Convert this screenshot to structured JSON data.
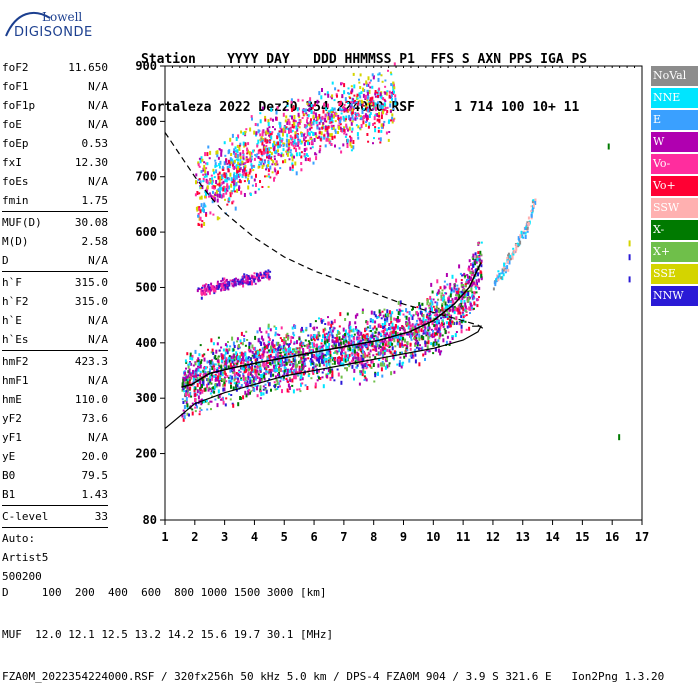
{
  "logo": {
    "line1": "Lowell",
    "line2": "DIGISONDE"
  },
  "header": {
    "line1": "Station    YYYY DAY   DDD HHMMSS P1  FFS S AXN PPS IGA PS",
    "line2": "Fortaleza 2022 Dez20 354 224000 RSF     1 714 100 10+ 11"
  },
  "params_groups": [
    [
      [
        "foF2",
        "11.650"
      ],
      [
        "foF1",
        "N/A"
      ],
      [
        "foF1p",
        "N/A"
      ],
      [
        "foE",
        "N/A"
      ],
      [
        "foEp",
        "0.53"
      ],
      [
        "fxI",
        "12.30"
      ],
      [
        "foEs",
        "N/A"
      ],
      [
        "fmin",
        "1.75"
      ]
    ],
    [
      [
        "MUF(D)",
        "30.08"
      ],
      [
        "M(D)",
        "2.58"
      ],
      [
        "D",
        "N/A"
      ]
    ],
    [
      [
        "h`F",
        "315.0"
      ],
      [
        "h`F2",
        "315.0"
      ],
      [
        "h`E",
        "N/A"
      ],
      [
        "h`Es",
        "N/A"
      ]
    ],
    [
      [
        "hmF2",
        "423.3"
      ],
      [
        "hmF1",
        "N/A"
      ],
      [
        "hmE",
        "110.0"
      ],
      [
        "yF2",
        "73.6"
      ],
      [
        "yF1",
        "N/A"
      ],
      [
        "yE",
        "20.0"
      ],
      [
        "B0",
        "79.5"
      ],
      [
        "B1",
        "1.43"
      ]
    ],
    [
      [
        "C-level",
        "33"
      ]
    ]
  ],
  "auto_block": [
    "Auto:",
    "Artist5",
    "500200"
  ],
  "legend": [
    {
      "label": "NoVal",
      "color": "#8c8c8c"
    },
    {
      "label": "NNE",
      "color": "#00e5ff"
    },
    {
      "label": "E",
      "color": "#3aa0ff"
    },
    {
      "label": "W",
      "color": "#b000b0"
    },
    {
      "label": "Vo-",
      "color": "#ff2d9e"
    },
    {
      "label": "Vo+",
      "color": "#ff0033"
    },
    {
      "label": "SSW",
      "color": "#ffb0b0"
    },
    {
      "label": "X-",
      "color": "#007a00"
    },
    {
      "label": "X+",
      "color": "#6fbf4a"
    },
    {
      "label": "SSE",
      "color": "#d4d400"
    },
    {
      "label": "NNW",
      "color": "#2a1ad6"
    }
  ],
  "footer": {
    "line1": "D     100  200  400  600  800 1000 1500 3000 [km]",
    "line2": "MUF  12.0 12.1 12.5 13.2 14.2 15.6 19.7 30.1 [MHz]",
    "line3": "FZA0M_2022354224000.RSF / 320fx256h 50 kHz 5.0 km / DPS-4 FZA0M 904 / 3.9 S 321.6 E   Ion2Png 1.3.20"
  },
  "chart_data": {
    "type": "scatter",
    "xlim": [
      1,
      17
    ],
    "ylim": [
      80,
      900
    ],
    "x_ticks": [
      1,
      2,
      3,
      4,
      5,
      6,
      7,
      8,
      9,
      10,
      11,
      12,
      13,
      14,
      15,
      16,
      17
    ],
    "y_ticks": [
      80,
      200,
      300,
      400,
      500,
      600,
      700,
      800,
      900
    ],
    "trace_o_mode": {
      "x": [
        1.55,
        1.9,
        2.5,
        3.3,
        4.2,
        5.2,
        6.2,
        7.2,
        8.2,
        9.2,
        10.0,
        10.7,
        11.2,
        11.6
      ],
      "y": [
        320,
        325,
        345,
        355,
        365,
        375,
        385,
        395,
        405,
        420,
        440,
        470,
        500,
        545
      ]
    },
    "trace_x_mode": {
      "x": [
        12.0,
        12.3,
        12.6,
        12.9,
        13.2,
        13.4
      ],
      "y": [
        510,
        530,
        560,
        590,
        625,
        665
      ]
    },
    "trace_oblique_lower": {
      "x": [
        2.0,
        2.5,
        3.0,
        3.5,
        4.0,
        4.5
      ],
      "y": [
        490,
        500,
        508,
        514,
        520,
        526
      ]
    },
    "trace_oblique_upper": {
      "x": [
        2.0,
        3.0,
        4.0,
        5.0,
        6.0,
        7.0,
        8.0,
        8.7
      ],
      "y": [
        665,
        705,
        745,
        770,
        795,
        815,
        830,
        845
      ]
    },
    "profile": {
      "x": [
        1.0,
        2.0,
        3.0,
        4.0,
        5.0,
        6.0,
        7.0,
        8.0,
        9.0,
        10.0,
        11.0,
        11.5,
        11.6,
        11.3
      ],
      "y": [
        245,
        290,
        310,
        325,
        340,
        350,
        360,
        370,
        380,
        390,
        405,
        420,
        430,
        430
      ]
    },
    "dashed_curve": {
      "x": [
        1.0,
        1.5,
        2.0,
        2.5,
        3.0,
        4.0,
        5.0,
        6.0,
        7.0,
        8.0,
        9.0,
        10.0,
        11.0,
        11.5,
        11.7
      ],
      "y": [
        780,
        740,
        700,
        665,
        635,
        590,
        555,
        530,
        510,
        490,
        470,
        455,
        440,
        432,
        425
      ]
    },
    "isolated_points": {
      "x": [
        15.85,
        16.2,
        16.55,
        16.55,
        16.55
      ],
      "y": [
        760,
        235,
        585,
        560,
        520
      ]
    }
  }
}
